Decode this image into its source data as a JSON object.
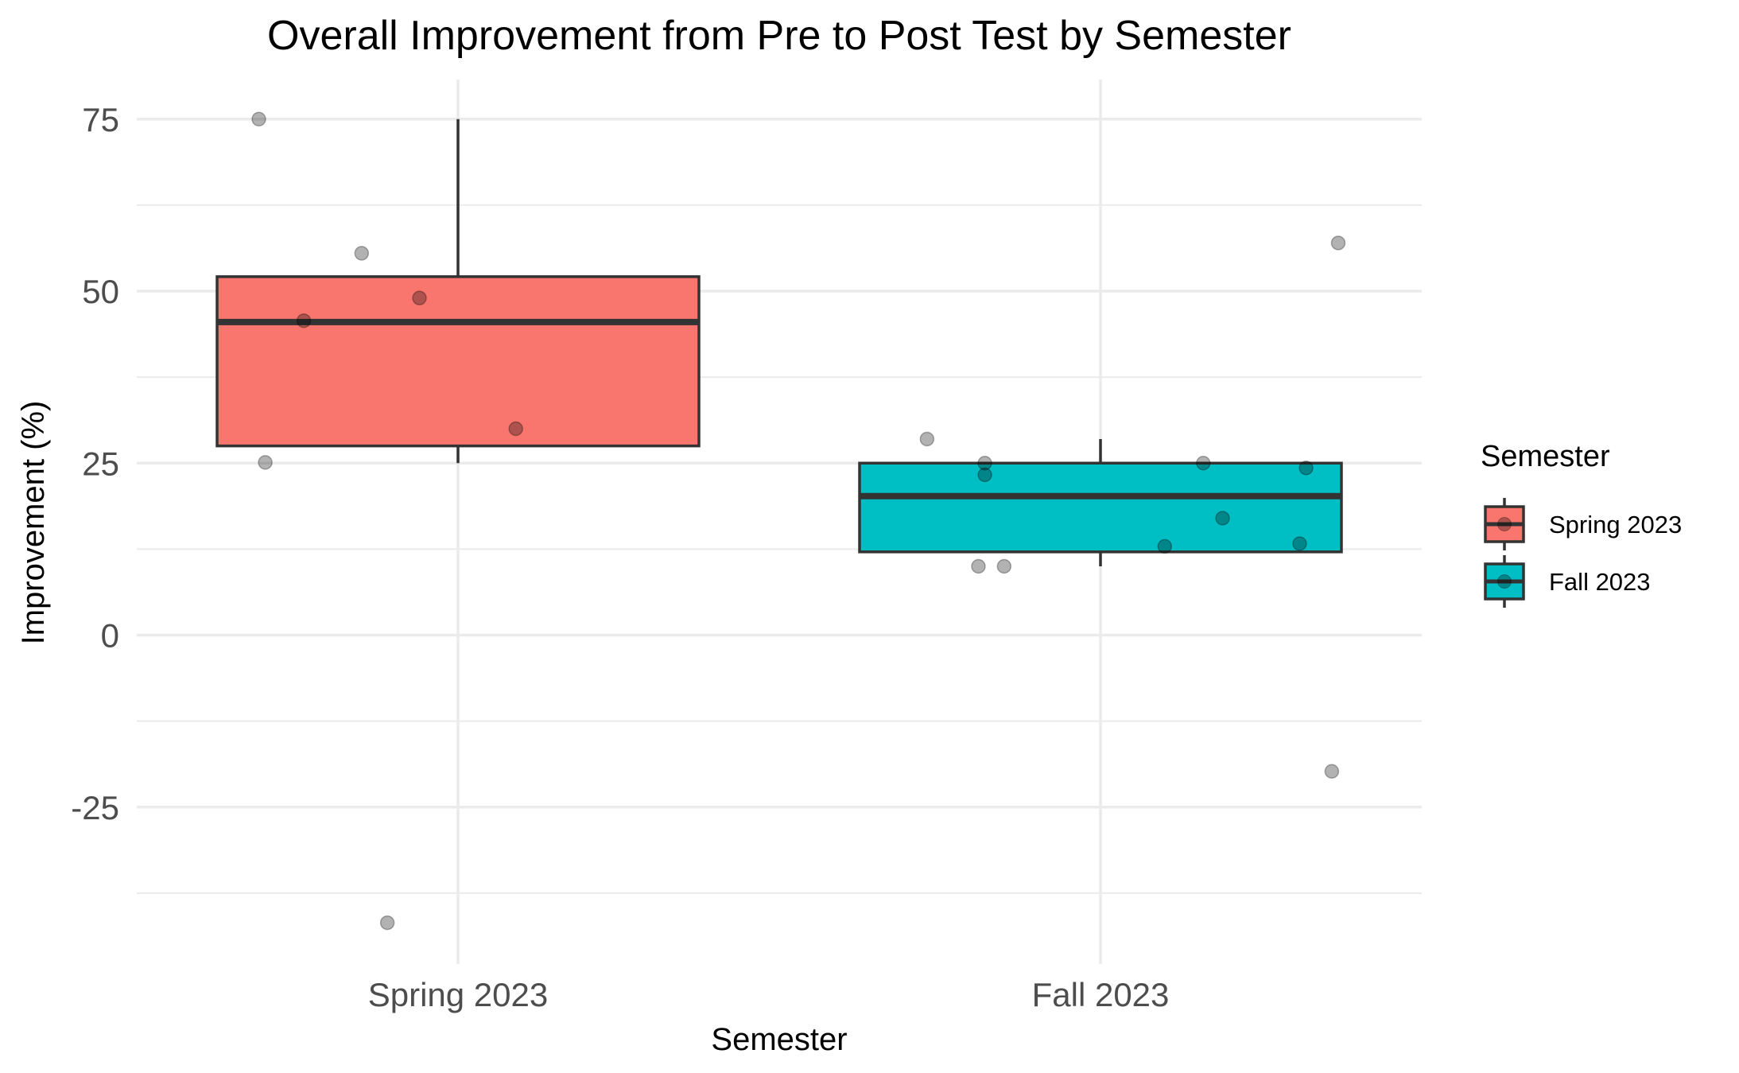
{
  "chart_data": {
    "type": "boxplot",
    "title": "Overall Improvement from Pre to Post Test by Semester",
    "xlabel": "Semester",
    "ylabel": "Improvement (%)",
    "categories": [
      "Spring 2023",
      "Fall 2023"
    ],
    "ylim": [
      -49,
      81
    ],
    "y_ticks": [
      75,
      50,
      25,
      0,
      -25
    ],
    "y_tick_labels": [
      "75",
      "50",
      "25",
      "0",
      "-25"
    ],
    "grid": true,
    "legend": {
      "title": "Semester",
      "position": "right",
      "entries": [
        "Spring 2023",
        "Fall 2023"
      ]
    },
    "series": [
      {
        "name": "Spring 2023",
        "color": "#F8766D",
        "box": {
          "q1": 27.5,
          "median": 45.5,
          "q3": 52.1,
          "whisker_low": 25,
          "whisker_high": 75
        },
        "points": [
          {
            "jitter": -0.31,
            "y": 75
          },
          {
            "jitter": -0.15,
            "y": 55.5
          },
          {
            "jitter": -0.06,
            "y": 49
          },
          {
            "jitter": -0.24,
            "y": 45.7
          },
          {
            "jitter": 0.09,
            "y": 30
          },
          {
            "jitter": -0.3,
            "y": 25.1
          },
          {
            "jitter": -0.11,
            "y": -41.8
          }
        ]
      },
      {
        "name": "Fall 2023",
        "color": "#00BFC4",
        "box": {
          "q1": 12.1,
          "median": 20.2,
          "q3": 25,
          "whisker_low": 10,
          "whisker_high": 28.5
        },
        "points": [
          {
            "jitter": -0.27,
            "y": 28.5
          },
          {
            "jitter": -0.18,
            "y": 25
          },
          {
            "jitter": 0.16,
            "y": 25
          },
          {
            "jitter": 0.32,
            "y": 24.3
          },
          {
            "jitter": -0.18,
            "y": 23.3
          },
          {
            "jitter": 0.19,
            "y": 17
          },
          {
            "jitter": 0.31,
            "y": 13.3
          },
          {
            "jitter": 0.1,
            "y": 12.9
          },
          {
            "jitter": -0.19,
            "y": 10
          },
          {
            "jitter": -0.15,
            "y": 10
          },
          {
            "jitter": 0.37,
            "y": 57
          },
          {
            "jitter": 0.36,
            "y": -19.8
          }
        ]
      }
    ]
  }
}
